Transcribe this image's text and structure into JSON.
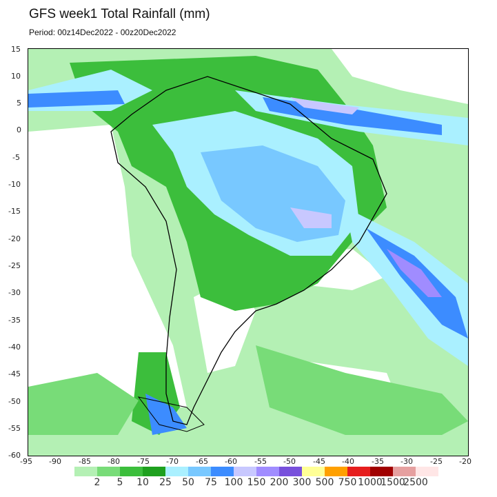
{
  "header": {
    "title": "GFS week1 Total Rainfall (mm)",
    "period": "Period: 00z14Dec2022 - 00z20Dec2022"
  },
  "map": {
    "lon_range": [
      -95,
      -20
    ],
    "lat_range": [
      -60,
      15
    ],
    "x_ticks": [
      "-95",
      "-90",
      "-85",
      "-80",
      "-75",
      "-70",
      "-65",
      "-60",
      "-55",
      "-50",
      "-45",
      "-40",
      "-35",
      "-30",
      "-25",
      "-20"
    ],
    "y_ticks": [
      "15",
      "10",
      "5",
      "0",
      "-5",
      "-10",
      "-15",
      "-20",
      "-25",
      "-30",
      "-35",
      "-40",
      "-45",
      "-50",
      "-55",
      "-60"
    ]
  },
  "legend": {
    "labels": [
      "2",
      "5",
      "10",
      "25",
      "50",
      "75",
      "100",
      "150",
      "200",
      "300",
      "500",
      "750",
      "1000",
      "1500",
      "2500"
    ],
    "colors": [
      "#b4f0b4",
      "#78dc78",
      "#3cbe3c",
      "#1ea01e",
      "#aaf0ff",
      "#78c8ff",
      "#3c8cff",
      "#c8c8ff",
      "#a08cff",
      "#7850dc",
      "#ffff96",
      "#ffa000",
      "#e61e1e",
      "#a00000",
      "#e6a0a0",
      "#ffe6e6"
    ]
  }
}
